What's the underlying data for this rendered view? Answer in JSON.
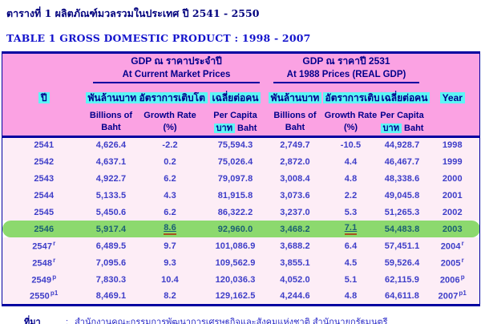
{
  "page": {
    "title_th": "ตารางที่ 1  ผลิตภัณฑ์มวลรวมในประเทศ ปี 2541 - 2550",
    "title_en": "TABLE 1  GROSS DOMESTIC PRODUCT : 1998 - 2007"
  },
  "table": {
    "group1": {
      "title_th": "GDP ณ ราคาประจำปี",
      "title_en": "At Current Market Prices"
    },
    "group2": {
      "title_th": "GDP ณ ราคาปี 2531",
      "title_en": "At 1988 Prices (REAL GDP)"
    },
    "columns": {
      "year_be": "ปี",
      "billions_th": "พันล้านบาท",
      "growth_th": "อัตราการเติบโต",
      "percap_th": "เฉลี่ยต่อคน",
      "billions_en1": "Billions of",
      "billions_en2": "Baht",
      "growth_en1": "Growth Rate",
      "growth_en2": "(%)",
      "percap_en1": "Per Capita",
      "percap_unit_th": "บาท",
      "percap_unit_en": "Baht",
      "year_ad": "Year"
    },
    "rows": [
      {
        "year_be": "2541",
        "cells": [
          "4,626.4",
          "-2.2",
          "75,594.3",
          "2,749.7",
          "-10.5",
          "44,928.7"
        ],
        "year_ad": "1998"
      },
      {
        "year_be": "2542",
        "cells": [
          "4,637.1",
          "0.2",
          "75,026.4",
          "2,872.0",
          "4.4",
          "46,467.7"
        ],
        "year_ad": "1999"
      },
      {
        "year_be": "2543",
        "cells": [
          "4,922.7",
          "6.2",
          "79,097.8",
          "3,008.4",
          "4.8",
          "48,338.6"
        ],
        "year_ad": "2000"
      },
      {
        "year_be": "2544",
        "cells": [
          "5,133.5",
          "4.3",
          "81,915.8",
          "3,073.6",
          "2.2",
          "49,045.8"
        ],
        "year_ad": "2001"
      },
      {
        "year_be": "2545",
        "cells": [
          "5,450.6",
          "6.2",
          "86,322.2",
          "3,237.0",
          "5.3",
          "51,265.3"
        ],
        "year_ad": "2002"
      },
      {
        "year_be": "2546",
        "cells": [
          "5,917.4",
          "8.6",
          "92,960.0",
          "3,468.2",
          "7.1",
          "54,483.8"
        ],
        "year_ad": "2003",
        "highlight": true
      },
      {
        "year_be": "2547",
        "year_be_sup": "r",
        "cells": [
          "6,489.5",
          "9.7",
          "101,086.9",
          "3,688.2",
          "6.4",
          "57,451.1"
        ],
        "year_ad": "2004",
        "year_ad_sup": "r"
      },
      {
        "year_be": "2548",
        "year_be_sup": "r",
        "cells": [
          "7,095.6",
          "9.3",
          "109,562.9",
          "3,855.1",
          "4.5",
          "59,526.4"
        ],
        "year_ad": "2005",
        "year_ad_sup": "r"
      },
      {
        "year_be": "2549",
        "year_be_sup": "p",
        "cells": [
          "7,830.3",
          "10.4",
          "120,036.3",
          "4,052.0",
          "5.1",
          "62,115.9"
        ],
        "year_ad": "2006",
        "year_ad_sup": "p"
      },
      {
        "year_be": "2550",
        "year_be_sup": "p1",
        "cells": [
          "8,469.1",
          "8.2",
          "129,162.5",
          "4,244.6",
          "4.8",
          "64,611.8"
        ],
        "year_ad": "2007",
        "year_ad_sup": "p1"
      }
    ],
    "underline_cell_indexes": [
      1,
      4
    ]
  },
  "footer": {
    "label": "ที่มา",
    "colon": ":",
    "source": "สำนักงานคณะกรรมการพัฒนาการเศรษฐกิจและสังคมแห่งชาติ สำนักนายกรัฐมนตรี"
  },
  "colors": {
    "border_navy": "#0000A0",
    "header_pink": "#FBA2E3",
    "cyan_highlight": "#5CF6F6",
    "body_pink": "#FDEDF6",
    "highlight_green": "#8CD96E",
    "data_blue": "#3D3DC8",
    "highlight_text": "#1B5E74",
    "underline_red": "#A8511E",
    "title_navy": "#00007D",
    "title_blue": "#1212CC"
  }
}
